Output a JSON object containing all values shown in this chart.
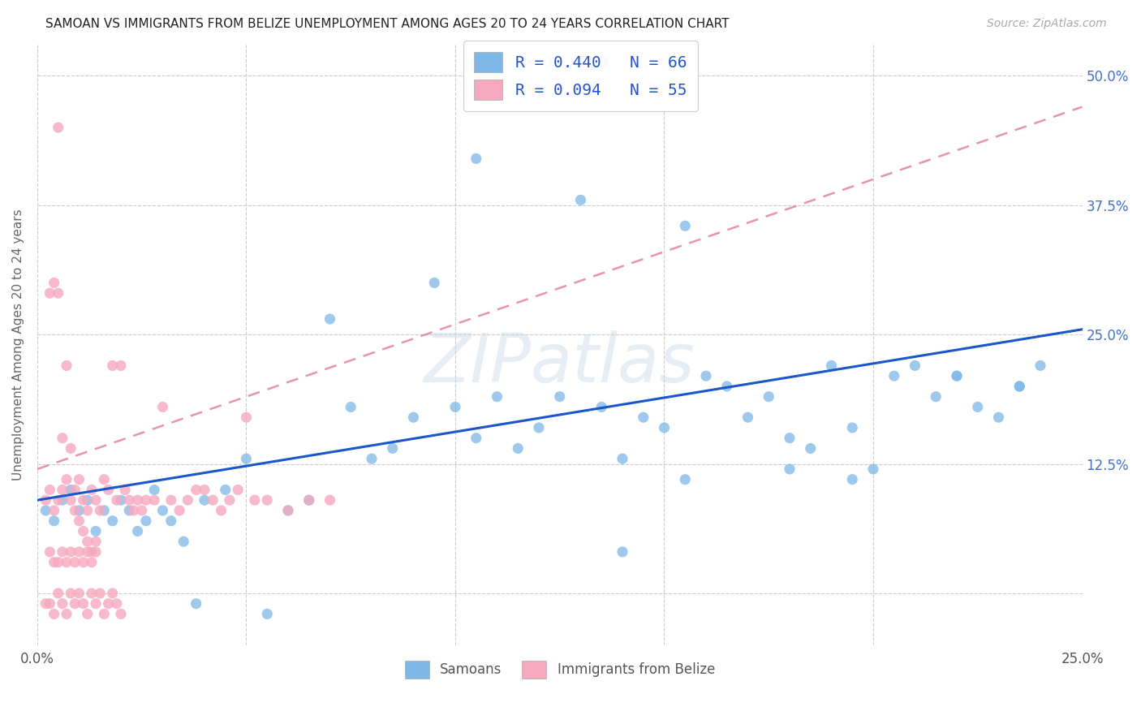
{
  "title": "SAMOAN VS IMMIGRANTS FROM BELIZE UNEMPLOYMENT AMONG AGES 20 TO 24 YEARS CORRELATION CHART",
  "source": "Source: ZipAtlas.com",
  "ylabel": "Unemployment Among Ages 20 to 24 years",
  "xlim": [
    0.0,
    0.25
  ],
  "ylim": [
    -0.05,
    0.53
  ],
  "xtick_vals": [
    0.0,
    0.05,
    0.1,
    0.15,
    0.2,
    0.25
  ],
  "xtick_labels": [
    "0.0%",
    "",
    "",
    "",
    "",
    "25.0%"
  ],
  "ytick_vals": [
    0.0,
    0.125,
    0.25,
    0.375,
    0.5
  ],
  "ytick_labels": [
    "",
    "12.5%",
    "25.0%",
    "37.5%",
    "50.0%"
  ],
  "background_color": "#ffffff",
  "grid_color": "#cccccc",
  "samoan_color": "#7eb8e8",
  "belize_color": "#f5a8be",
  "samoan_R": 0.44,
  "samoan_N": 66,
  "belize_R": 0.094,
  "belize_N": 55,
  "trend_samoan_color": "#1a56cc",
  "trend_belize_color": "#e07090",
  "trend_samoan": [
    0.0,
    0.25,
    0.09,
    0.255
  ],
  "trend_belize": [
    0.0,
    0.25,
    0.12,
    0.47
  ],
  "watermark_text": "ZIPatlas",
  "legend_r_label1": "R = 0.440   N = 66",
  "legend_r_label2": "R = 0.094   N = 55",
  "bottom_legend_label1": "Samoans",
  "bottom_legend_label2": "Immigrants from Belize",
  "samoans_x": [
    0.002,
    0.004,
    0.006,
    0.008,
    0.01,
    0.012,
    0.014,
    0.016,
    0.018,
    0.02,
    0.022,
    0.024,
    0.026,
    0.028,
    0.03,
    0.032,
    0.035,
    0.038,
    0.04,
    0.045,
    0.05,
    0.055,
    0.06,
    0.065,
    0.07,
    0.075,
    0.08,
    0.085,
    0.09,
    0.095,
    0.1,
    0.105,
    0.11,
    0.115,
    0.12,
    0.125,
    0.13,
    0.135,
    0.14,
    0.145,
    0.15,
    0.155,
    0.16,
    0.165,
    0.17,
    0.175,
    0.18,
    0.185,
    0.19,
    0.195,
    0.2,
    0.205,
    0.21,
    0.215,
    0.22,
    0.225,
    0.23,
    0.235,
    0.24,
    0.14,
    0.155,
    0.105,
    0.18,
    0.195,
    0.22,
    0.235
  ],
  "samoans_y": [
    0.08,
    0.07,
    0.09,
    0.1,
    0.08,
    0.09,
    0.06,
    0.08,
    0.07,
    0.09,
    0.08,
    0.06,
    0.07,
    0.1,
    0.08,
    0.07,
    0.05,
    -0.01,
    0.09,
    0.1,
    0.13,
    -0.02,
    0.08,
    0.09,
    0.265,
    0.18,
    0.13,
    0.14,
    0.17,
    0.3,
    0.18,
    0.15,
    0.19,
    0.14,
    0.16,
    0.19,
    0.38,
    0.18,
    0.13,
    0.17,
    0.16,
    0.355,
    0.21,
    0.2,
    0.17,
    0.19,
    0.15,
    0.14,
    0.22,
    0.16,
    0.12,
    0.21,
    0.22,
    0.19,
    0.21,
    0.18,
    0.17,
    0.2,
    0.22,
    0.04,
    0.11,
    0.42,
    0.12,
    0.11,
    0.21,
    0.2
  ],
  "belize_x": [
    0.002,
    0.003,
    0.004,
    0.005,
    0.006,
    0.007,
    0.008,
    0.009,
    0.01,
    0.011,
    0.012,
    0.013,
    0.014,
    0.015,
    0.016,
    0.017,
    0.018,
    0.019,
    0.02,
    0.021,
    0.022,
    0.023,
    0.024,
    0.025,
    0.026,
    0.028,
    0.03,
    0.032,
    0.034,
    0.036,
    0.038,
    0.04,
    0.042,
    0.044,
    0.046,
    0.048,
    0.05,
    0.052,
    0.055,
    0.06,
    0.065,
    0.07,
    0.003,
    0.004,
    0.005,
    0.006,
    0.007,
    0.008,
    0.009,
    0.01,
    0.011,
    0.012,
    0.013,
    0.014,
    0.005
  ],
  "belize_y": [
    0.09,
    0.1,
    0.08,
    0.09,
    0.1,
    0.11,
    0.09,
    0.1,
    0.11,
    0.09,
    0.08,
    0.1,
    0.09,
    0.08,
    0.11,
    0.1,
    0.22,
    0.09,
    0.22,
    0.1,
    0.09,
    0.08,
    0.09,
    0.08,
    0.09,
    0.09,
    0.18,
    0.09,
    0.08,
    0.09,
    0.1,
    0.1,
    0.09,
    0.08,
    0.09,
    0.1,
    0.17,
    0.09,
    0.09,
    0.08,
    0.09,
    0.09,
    0.29,
    0.3,
    0.45,
    0.15,
    0.22,
    0.14,
    0.08,
    0.07,
    0.06,
    0.05,
    0.04,
    0.05,
    0.29
  ],
  "belize_low_x": [
    0.002,
    0.003,
    0.004,
    0.005,
    0.006,
    0.007,
    0.008,
    0.009,
    0.01,
    0.011,
    0.012,
    0.013,
    0.014,
    0.015,
    0.016,
    0.017,
    0.018,
    0.019,
    0.02,
    0.003,
    0.004,
    0.005,
    0.006,
    0.007,
    0.008,
    0.009,
    0.01,
    0.011,
    0.012,
    0.013,
    0.014
  ],
  "belize_low_y": [
    -0.01,
    -0.01,
    -0.02,
    0.0,
    -0.01,
    -0.02,
    0.0,
    -0.01,
    0.0,
    -0.01,
    -0.02,
    0.0,
    -0.01,
    0.0,
    -0.02,
    -0.01,
    0.0,
    -0.01,
    -0.02,
    0.04,
    0.03,
    0.03,
    0.04,
    0.03,
    0.04,
    0.03,
    0.04,
    0.03,
    0.04,
    0.03,
    0.04
  ]
}
